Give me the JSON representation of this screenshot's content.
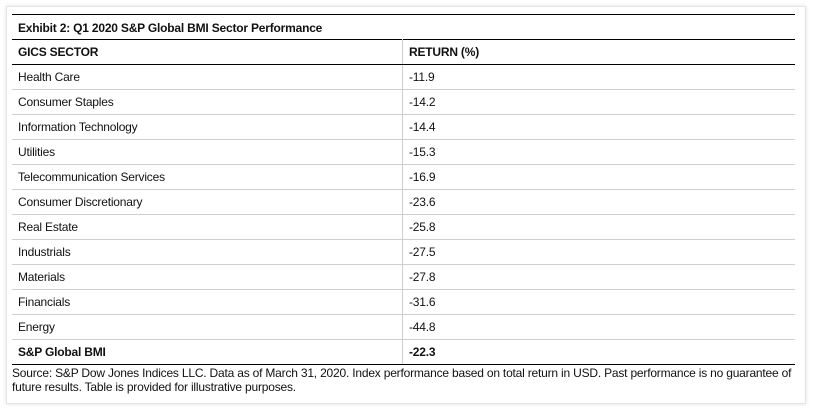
{
  "title": "Exhibit 2: Q1 2020 S&P Global BMI Sector Performance",
  "table": {
    "header": [
      "GICS SECTOR",
      "RETURN (%)"
    ],
    "rows": [
      [
        "Health Care",
        -11.9
      ],
      [
        "Consumer Staples",
        -14.2
      ],
      [
        "Information Technology",
        -14.4
      ],
      [
        "Utilities",
        -15.3
      ],
      [
        "Telecommunication Services",
        -16.9
      ],
      [
        "Consumer Discretionary",
        -23.6
      ],
      [
        "Real Estate",
        -25.8
      ],
      [
        "Industrials",
        -27.5
      ],
      [
        "Materials",
        -27.8
      ],
      [
        "Financials",
        -31.6
      ],
      [
        "Energy",
        -44.8
      ]
    ],
    "total": [
      "S&P Global BMI",
      -22.3
    ]
  },
  "source": "Source: S&P Dow Jones Indices LLC. Data as of March 31, 2020. Index performance based on total return in USD. Past performance is no guarantee of future results. Table is provided for illustrative purposes."
}
